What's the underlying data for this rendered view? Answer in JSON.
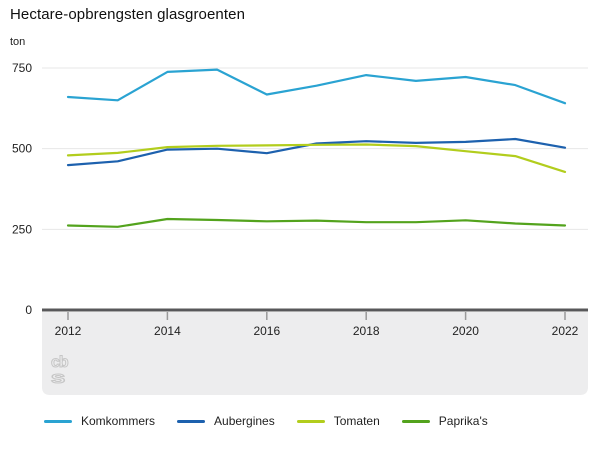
{
  "title": "Hectare-opbrengsten glasgroenten",
  "unit_label": "ton",
  "logo_text": "cbs",
  "colors": {
    "grid": "#e7e7e7",
    "zero_axis": "#58585a",
    "axis_band": "#ededee",
    "tick": "#9a9a9a",
    "tick_label": "#222222",
    "logo": "#c6c6c6"
  },
  "chart_data": {
    "type": "line",
    "title": "Hectare-opbrengsten glasgroenten",
    "ylabel": "ton",
    "xlabel": "",
    "grid": true,
    "legend_position": "bottom",
    "ylim": [
      0,
      780
    ],
    "y_ticks": [
      0,
      250,
      500,
      750
    ],
    "x": [
      2012,
      2013,
      2014,
      2015,
      2016,
      2017,
      2018,
      2019,
      2020,
      2021,
      2022
    ],
    "x_ticks": [
      2012,
      2014,
      2016,
      2018,
      2020,
      2022
    ],
    "series": [
      {
        "name": "Komkommers",
        "color": "#2aa3d2",
        "values": [
          660,
          650,
          738,
          745,
          668,
          695,
          728,
          710,
          722,
          697,
          641
        ]
      },
      {
        "name": "Aubergines",
        "color": "#1d61ae",
        "values": [
          449,
          461,
          497,
          500,
          486,
          516,
          523,
          518,
          521,
          530,
          503
        ]
      },
      {
        "name": "Tomaten",
        "color": "#b2cd1d",
        "values": [
          479,
          487,
          505,
          509,
          510,
          512,
          513,
          508,
          492,
          477,
          428
        ]
      },
      {
        "name": "Paprika's",
        "color": "#53a31d",
        "values": [
          262,
          258,
          282,
          279,
          275,
          277,
          272,
          272,
          278,
          268,
          262
        ]
      }
    ]
  }
}
